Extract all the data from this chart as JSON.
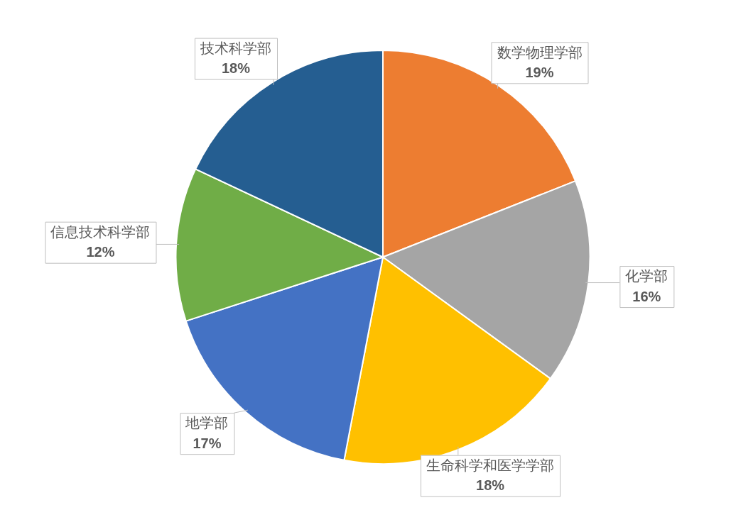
{
  "chart_data": {
    "type": "pie",
    "categories": [
      "数学物理学部",
      "化学部",
      "生命科学和医学学部",
      "地学部",
      "信息技术科学部",
      "技术科学部"
    ],
    "values": [
      19,
      16,
      18,
      17,
      12,
      18
    ],
    "value_labels": [
      "19%",
      "16%",
      "18%",
      "17%",
      "12%",
      "18%"
    ],
    "colors": [
      "#ed7d31",
      "#a5a5a5",
      "#ffc000",
      "#4472c4",
      "#70ad47",
      "#255e91"
    ],
    "legend": false
  }
}
